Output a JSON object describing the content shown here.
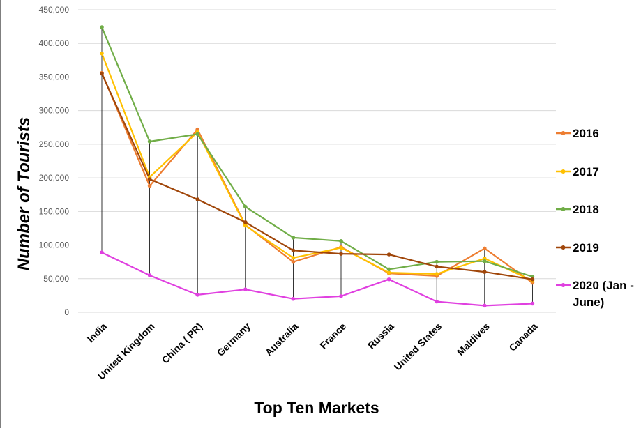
{
  "chart_data": {
    "type": "line",
    "title": "",
    "xlabel": "Top Ten Markets",
    "ylabel": "Number of Tourists",
    "categories": [
      "India",
      "United Kingdom",
      "China ( PR)",
      "Germany",
      "Australia",
      "France",
      "Russia",
      "United States",
      "Maldives",
      "Canada"
    ],
    "ylim": [
      0,
      450000
    ],
    "yticks": [
      0,
      50000,
      100000,
      150000,
      200000,
      250000,
      300000,
      350000,
      400000,
      450000
    ],
    "ytick_labels": [
      "0",
      "50,000",
      "100,000",
      "150,000",
      "200,000",
      "250,000",
      "300,000",
      "350,000",
      "400,000",
      "450,000"
    ],
    "grid": true,
    "drop_lines": true,
    "legend_position": "right",
    "series": [
      {
        "name": "2016",
        "color": "#ED7D31",
        "values": [
          356000,
          188000,
          272000,
          130000,
          75000,
          97000,
          58000,
          54000,
          95000,
          44000
        ]
      },
      {
        "name": "2017",
        "color": "#FFC000",
        "values": [
          385000,
          201000,
          268000,
          129000,
          81000,
          96000,
          59000,
          57000,
          80000,
          47000
        ]
      },
      {
        "name": "2018",
        "color": "#70AD47",
        "values": [
          424000,
          254000,
          265000,
          157000,
          111000,
          106000,
          64000,
          75000,
          76000,
          53000
        ]
      },
      {
        "name": "2019",
        "color": "#A0460A",
        "values": [
          355000,
          198000,
          168000,
          134000,
          92000,
          87000,
          86000,
          68000,
          60000,
          49000
        ]
      },
      {
        "name": "2020 (Jan - June)",
        "color": "#E040E0",
        "values": [
          89000,
          55000,
          26000,
          34000,
          20000,
          24000,
          49000,
          16000,
          10000,
          13000
        ]
      }
    ]
  }
}
